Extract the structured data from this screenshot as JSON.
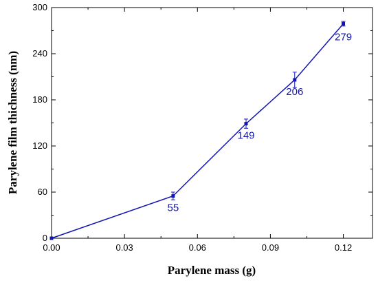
{
  "chart_data": {
    "type": "line",
    "xlabel": "Parylene mass (g)",
    "ylabel": "Parylene film thichness (nm)",
    "xlim": [
      0,
      0.132
    ],
    "ylim": [
      0,
      300
    ],
    "x_ticks": [
      "0.00",
      "0.03",
      "0.06",
      "0.09",
      "0.12"
    ],
    "y_ticks": [
      "0",
      "60",
      "120",
      "180",
      "240",
      "300"
    ],
    "grid": false,
    "legend": "none",
    "color": "#1414b4",
    "series": [
      {
        "x": [
          0,
          0.05,
          0.08,
          0.1,
          0.12
        ],
        "y": [
          0,
          55,
          149,
          206,
          279
        ],
        "error": [
          0,
          5,
          6,
          10,
          3
        ],
        "labels": [
          "",
          "55",
          "149",
          "206",
          "279"
        ]
      }
    ]
  }
}
